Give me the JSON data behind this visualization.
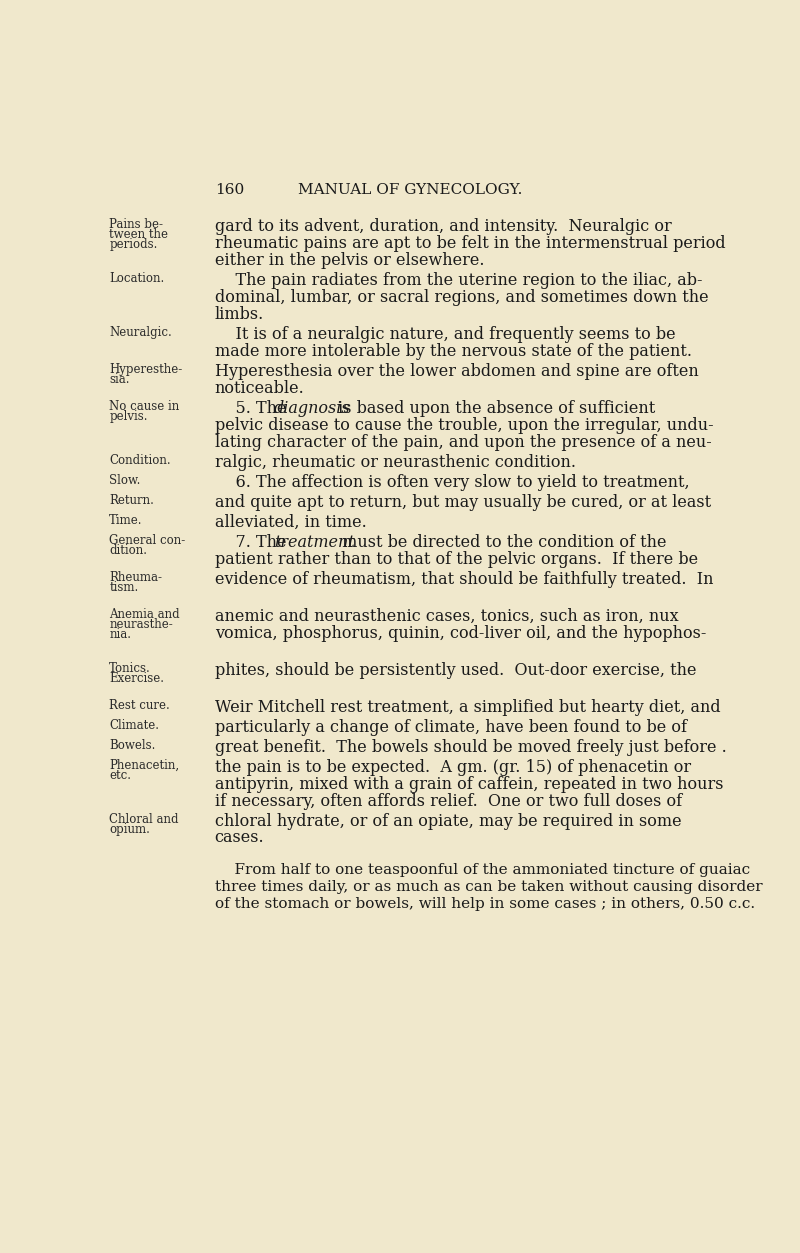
{
  "background_color": "#f0e8cc",
  "page_number": "160",
  "header_title": "MANUAL OF GYNECOLOGY.",
  "text_color": "#1a1a1a",
  "margin_label_color": "#2a2a2a",
  "figsize": [
    8.0,
    12.53
  ],
  "dpi": 100,
  "content": [
    {
      "margin_labels": [
        "Pains be-",
        "tween the",
        "periods."
      ],
      "body_lines": [
        {
          "text": "gard to its advent, duration, and intensity.  Neuralgic or",
          "italic_word": ""
        },
        {
          "text": "rheumatic pains are apt to be felt in the intermenstrual period",
          "italic_word": ""
        },
        {
          "text": "either in the pelvis or elsewhere.",
          "italic_word": ""
        }
      ]
    },
    {
      "margin_labels": [
        "Location."
      ],
      "body_lines": [
        {
          "text": "    The pain radiates from the uterine region to the iliac, ab-",
          "italic_word": ""
        },
        {
          "text": "dominal, lumbar, or sacral regions, and sometimes down the",
          "italic_word": ""
        },
        {
          "text": "limbs.",
          "italic_word": ""
        }
      ]
    },
    {
      "margin_labels": [
        "Neuralgic."
      ],
      "body_lines": [
        {
          "text": "    It is of a neuralgic nature, and frequently seems to be",
          "italic_word": ""
        },
        {
          "text": "made more intolerable by the nervous state of the patient.",
          "italic_word": ""
        }
      ]
    },
    {
      "margin_labels": [
        "Hyperesthe-",
        "sia."
      ],
      "body_lines": [
        {
          "text": "Hyperesthesia over the lower abdomen and spine are often",
          "italic_word": ""
        },
        {
          "text": "noticeable.",
          "italic_word": ""
        }
      ]
    },
    {
      "margin_labels": [
        "No cause in",
        "pelvis."
      ],
      "body_lines": [
        {
          "text": "    5. The |diagnosis| is based upon the absence of sufficient",
          "italic_word": "diagnosis"
        },
        {
          "text": "pelvic disease to cause the trouble, upon the irregular, undu-",
          "italic_word": ""
        },
        {
          "text": "lating character of the pain, and upon the presence of a neu-",
          "italic_word": ""
        }
      ]
    },
    {
      "margin_labels": [
        "Condition."
      ],
      "body_lines": [
        {
          "text": "ralgic, rheumatic or neurasthenic condition.",
          "italic_word": ""
        }
      ]
    },
    {
      "margin_labels": [
        "Slow."
      ],
      "body_lines": [
        {
          "text": "    6. The affection is often very slow to yield to treatment,",
          "italic_word": ""
        }
      ]
    },
    {
      "margin_labels": [
        "Return."
      ],
      "body_lines": [
        {
          "text": "and quite apt to return, but may usually be cured, or at least",
          "italic_word": ""
        }
      ]
    },
    {
      "margin_labels": [
        "Time."
      ],
      "body_lines": [
        {
          "text": "alleviated, in time.",
          "italic_word": ""
        }
      ]
    },
    {
      "margin_labels": [
        "General con-",
        "dition."
      ],
      "body_lines": [
        {
          "text": "    7. The |treatment| must be directed to the condition of the",
          "italic_word": "treatment"
        },
        {
          "text": "patient rather than to that of the pelvic organs.  If there be",
          "italic_word": ""
        }
      ]
    },
    {
      "margin_labels": [
        "Rheuma-",
        "tism."
      ],
      "body_lines": [
        {
          "text": "evidence of rheumatism, that should be faithfully treated.  In",
          "italic_word": ""
        }
      ]
    },
    {
      "margin_labels": [
        "Anemia and",
        "neurasthe-",
        "nia."
      ],
      "body_lines": [
        {
          "text": "anemic and neurasthenic cases, tonics, such as iron, nux",
          "italic_word": ""
        },
        {
          "text": "vomica, phosphorus, quinin, cod-liver oil, and the hypophos-",
          "italic_word": ""
        }
      ]
    },
    {
      "margin_labels": [
        "Tonics.",
        "Exercise."
      ],
      "body_lines": [
        {
          "text": "phites, should be persistently used.  Out-door exercise, the",
          "italic_word": ""
        }
      ]
    },
    {
      "margin_labels": [
        "Rest cure."
      ],
      "body_lines": [
        {
          "text": "Weir Mitchell rest treatment, a simplified but hearty diet, and",
          "italic_word": ""
        }
      ]
    },
    {
      "margin_labels": [
        "Climate."
      ],
      "body_lines": [
        {
          "text": "particularly a change of climate, have been found to be of",
          "italic_word": ""
        }
      ]
    },
    {
      "margin_labels": [
        "Bowels."
      ],
      "body_lines": [
        {
          "text": "great benefit.  The bowels should be moved freely just before .",
          "italic_word": ""
        }
      ]
    },
    {
      "margin_labels": [
        "Phenacetin,",
        "etc."
      ],
      "body_lines": [
        {
          "text": "the pain is to be expected.  A gm. (gr. 15) of phenacetin or",
          "italic_word": ""
        },
        {
          "text": "antipyrin, mixed with a grain of caffein, repeated in two hours",
          "italic_word": ""
        },
        {
          "text": "if necessary, often affords relief.  One or two full doses of",
          "italic_word": ""
        }
      ]
    },
    {
      "margin_labels": [
        "Chloral and",
        "opium."
      ],
      "body_lines": [
        {
          "text": "chloral hydrate, or of an opiate, may be required in some",
          "italic_word": ""
        },
        {
          "text": "cases.",
          "italic_word": ""
        }
      ]
    }
  ],
  "footer_lines": [
    "    From half to one teaspoonful of the ammoniated tincture of guaiac",
    "three times daily, or as much as can be taken without causing disorder",
    "of the stomach or bowels, will help in some cases ; in others, 0.50 c.c."
  ]
}
